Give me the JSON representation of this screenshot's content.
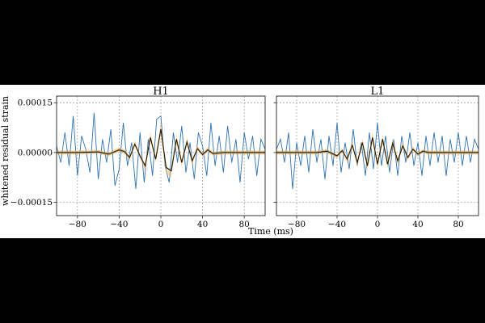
{
  "figure": {
    "ylabel": "whitened residual strain",
    "xlabel": "Time (ms)"
  },
  "colors": {
    "residual": "#2f72b0",
    "envelope": "#f0b44a",
    "band": "#8a8a8a",
    "median": "#111111",
    "grid": "#9a9a9a"
  },
  "chart_data": [
    {
      "type": "line",
      "title": "H1",
      "xlim": [
        -100,
        100
      ],
      "ylim": [
        -0.00019,
        0.00017
      ],
      "xticks": [
        -80,
        -40,
        0,
        40,
        80
      ],
      "xtick_labels": [
        "−80",
        "−40",
        "0",
        "40",
        "80"
      ],
      "yticks": [
        0.00015,
        0.0,
        -0.00015
      ],
      "ytick_labels": [
        "0.00015",
        "0.00000",
        "−0.00015"
      ],
      "series": [
        {
          "role": "whitened data",
          "x": [
            -100,
            -96,
            -92,
            -88,
            -84,
            -80,
            -76,
            -72,
            -68,
            -64,
            -60,
            -56,
            -52,
            -48,
            -44,
            -40,
            -36,
            -32,
            -28,
            -24,
            -20,
            -16,
            -12,
            -8,
            -4,
            0,
            4,
            8,
            12,
            16,
            20,
            24,
            28,
            32,
            36,
            40,
            44,
            48,
            52,
            56,
            60,
            64,
            68,
            72,
            76,
            80,
            84,
            88,
            92,
            96,
            100
          ],
          "y": [
            2e-05,
            -3e-05,
            6e-05,
            -4e-05,
            0.00011,
            -7e-05,
            5e-05,
            1e-05,
            -6e-05,
            0.00012,
            -8e-05,
            4e-05,
            -3e-05,
            7e-05,
            -0.0001,
            -5e-05,
            9e-05,
            -4e-05,
            3e-05,
            -0.00011,
            6e-05,
            -9e-05,
            4e-05,
            -7e-05,
            0.0001,
            0.00011,
            -4e-05,
            -9e-05,
            6e-05,
            -3e-05,
            8e-05,
            -6e-05,
            3e-05,
            -8e-05,
            6e-05,
            2e-05,
            -7e-05,
            9e-05,
            -4e-05,
            5e-05,
            -6e-05,
            8e-05,
            -3e-05,
            4e-05,
            -9e-05,
            6e-05,
            -2e-05,
            5e-05,
            -7e-05,
            4e-05,
            1e-05
          ]
        },
        {
          "role": "waveform median",
          "x": [
            -100,
            -80,
            -60,
            -50,
            -40,
            -35,
            -30,
            -25,
            -20,
            -15,
            -10,
            -5,
            0,
            5,
            10,
            15,
            20,
            25,
            30,
            35,
            40,
            45,
            50,
            60,
            80,
            100
          ],
          "y": [
            0.0,
            0.0,
            2e-06,
            -5e-06,
            8e-06,
            3e-06,
            -1.5e-05,
            2.5e-05,
            -1e-05,
            -4e-05,
            4.5e-05,
            -2e-05,
            7e-05,
            -4.5e-05,
            -5.5e-05,
            4e-05,
            -3e-05,
            3.2e-05,
            -2.5e-05,
            1.2e-05,
            -6e-06,
            8e-06,
            -3e-06,
            0.0,
            0.0,
            0.0
          ]
        }
      ]
    },
    {
      "type": "line",
      "title": "L1",
      "xlim": [
        -100,
        100
      ],
      "ylim": [
        -0.00019,
        0.00017
      ],
      "xticks": [
        -80,
        -40,
        0,
        40,
        80
      ],
      "xtick_labels": [
        "−80",
        "−40",
        "0",
        "40",
        "80"
      ],
      "yticks": [
        0.00015,
        0.0,
        -0.00015
      ],
      "ytick_labels": [
        "",
        "",
        ""
      ],
      "series": [
        {
          "role": "whitened data",
          "x": [
            -100,
            -96,
            -92,
            -88,
            -84,
            -80,
            -76,
            -72,
            -68,
            -64,
            -60,
            -56,
            -52,
            -48,
            -44,
            -40,
            -36,
            -32,
            -28,
            -24,
            -20,
            -16,
            -12,
            -8,
            -4,
            0,
            4,
            8,
            12,
            16,
            20,
            24,
            28,
            32,
            36,
            40,
            44,
            48,
            52,
            56,
            60,
            64,
            68,
            72,
            76,
            80,
            84,
            88,
            92,
            96,
            100
          ],
          "y": [
            1e-05,
            4e-05,
            -3e-05,
            6e-05,
            -0.00011,
            3e-05,
            -4e-05,
            5e-05,
            -6e-05,
            7e-05,
            -3e-05,
            4e-05,
            -8e-05,
            5e-05,
            -4e-05,
            9e-05,
            -6e-05,
            3e-05,
            -5e-05,
            7e-05,
            -4e-05,
            3e-05,
            -7e-05,
            6e-05,
            -5e-05,
            9e-05,
            -4e-05,
            5e-05,
            -6e-05,
            4e-05,
            -7e-05,
            5e-05,
            -3e-05,
            6e-05,
            -4e-05,
            3e-05,
            -7e-05,
            5e-05,
            -4e-05,
            6e-05,
            -3e-05,
            5e-05,
            -7e-05,
            4e-05,
            -3e-05,
            6e-05,
            -4e-05,
            5e-05,
            -3e-05,
            4e-05,
            1e-05
          ]
        },
        {
          "role": "waveform median",
          "x": [
            -100,
            -80,
            -60,
            -50,
            -40,
            -35,
            -30,
            -25,
            -20,
            -15,
            -10,
            -5,
            0,
            5,
            10,
            15,
            20,
            25,
            30,
            35,
            40,
            45,
            50,
            60,
            80,
            100
          ],
          "y": [
            0.0,
            0.0,
            0.0,
            4e-06,
            -1e-05,
            6e-06,
            -2e-05,
            2.2e-05,
            -3e-05,
            3e-05,
            -4e-05,
            4.5e-05,
            -3.5e-05,
            4e-05,
            -3.5e-05,
            2.8e-05,
            -2.5e-05,
            2e-05,
            -1.5e-05,
            1e-05,
            -5e-06,
            4e-06,
            0.0,
            0.0,
            0.0,
            0.0
          ]
        }
      ]
    }
  ]
}
